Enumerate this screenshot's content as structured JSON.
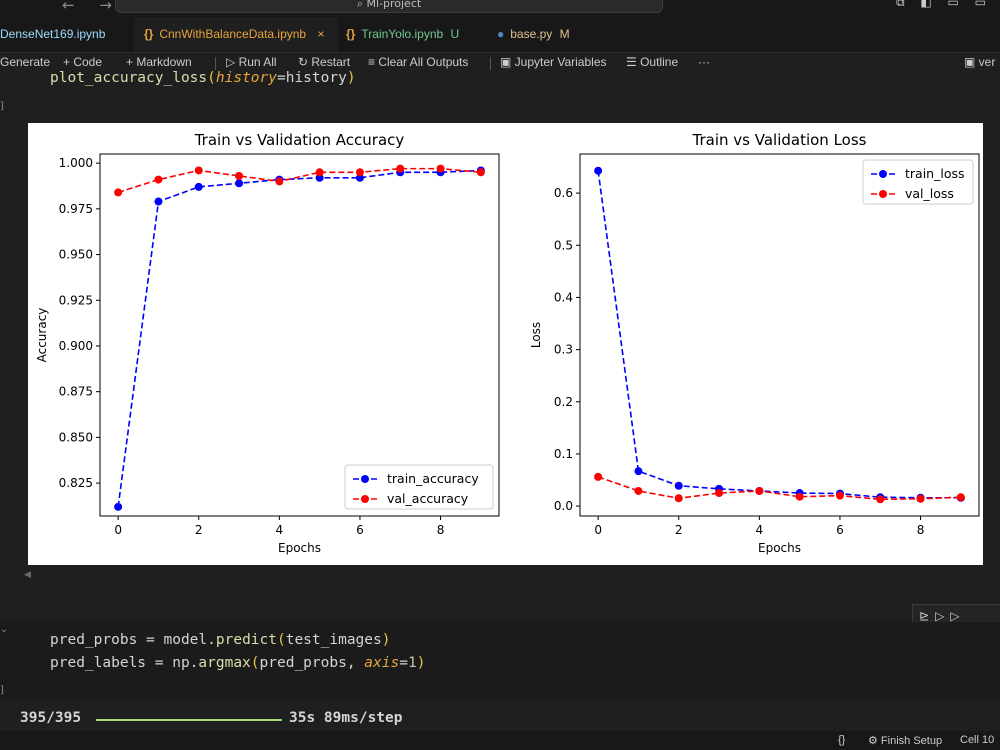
{
  "titlebar": {
    "nav": "← →",
    "search_label": "Ml-project",
    "right_icons": "⧉ ◧ ▭ ▭"
  },
  "tabs": [
    {
      "label": "DenseNet169.ipynb",
      "color": "#9cdcfe",
      "icon": "",
      "suffix": ""
    },
    {
      "label": "CnnWithBalanceData.ipynb",
      "color": "#e8a33d",
      "icon": "{}",
      "suffix": "×"
    },
    {
      "label": "TrainYolo.ipynb",
      "color": "#73c991",
      "icon": "{}",
      "suffix": "U"
    },
    {
      "label": "base.py",
      "color": "#e2c08d",
      "icon": "py",
      "suffix": "M"
    }
  ],
  "toolbar": {
    "generate": "Generate",
    "code": "+ Code",
    "markdown": "+ Markdown",
    "run_all": "▷ Run All",
    "restart": "↻ Restart",
    "clear": "≡ Clear All Outputs",
    "variables": "▣ Jupyter Variables",
    "outline": "☰ Outline",
    "more": "···",
    "kernel": "ver"
  },
  "cell1": {
    "fn": "plot_accuracy_loss",
    "param": "history",
    "arg": "history"
  },
  "cell2": {
    "line1_var": "pred_probs = model.",
    "line1_fn": "predict",
    "line1_arg": "test_images",
    "line2_var": "pred_labels = np.",
    "line2_fn": "argmax",
    "line2_arg": "pred_probs, ",
    "line2_param": "axis",
    "line2_val": "1"
  },
  "progress": {
    "count": "395/395",
    "fraction": 1.0,
    "after": "35s 89ms/step"
  },
  "statusbar": {
    "braces": "{}",
    "finish": "Finish Setup",
    "cell": "Cell 10"
  },
  "colors": {
    "train": "#0000ff",
    "val": "#ff0000",
    "active_tab": "#e8a33d"
  },
  "chart_data": [
    {
      "type": "line",
      "title": "Train vs Validation Accuracy",
      "xlabel": "Epochs",
      "ylabel": "Accuracy",
      "x": [
        0,
        1,
        2,
        3,
        4,
        5,
        6,
        7,
        8,
        9
      ],
      "xticks": [
        "0",
        "2",
        "4",
        "6",
        "8"
      ],
      "yticks": [
        "0.825",
        "0.850",
        "0.875",
        "0.900",
        "0.925",
        "0.950",
        "0.975",
        "1.000"
      ],
      "ylim": [
        0.807,
        1.005
      ],
      "xlim": [
        -0.45,
        9.45
      ],
      "legend_position": "lower right",
      "series": [
        {
          "name": "train_accuracy",
          "color": "#0000ff",
          "values": [
            0.812,
            0.979,
            0.987,
            0.989,
            0.991,
            0.992,
            0.992,
            0.995,
            0.995,
            0.996
          ]
        },
        {
          "name": "val_accuracy",
          "color": "#ff0000",
          "values": [
            0.984,
            0.991,
            0.996,
            0.993,
            0.99,
            0.995,
            0.995,
            0.997,
            0.997,
            0.995
          ]
        }
      ]
    },
    {
      "type": "line",
      "title": "Train vs Validation Loss",
      "xlabel": "Epochs",
      "ylabel": "Loss",
      "x": [
        0,
        1,
        2,
        3,
        4,
        5,
        6,
        7,
        8,
        9
      ],
      "xticks": [
        "0",
        "2",
        "4",
        "6",
        "8"
      ],
      "yticks": [
        "0.0",
        "0.1",
        "0.2",
        "0.3",
        "0.4",
        "0.5",
        "0.6"
      ],
      "ylim": [
        -0.019,
        0.675
      ],
      "xlim": [
        -0.45,
        9.45
      ],
      "legend_position": "upper right",
      "series": [
        {
          "name": "train_loss",
          "color": "#0000ff",
          "values": [
            0.643,
            0.067,
            0.039,
            0.033,
            0.029,
            0.025,
            0.024,
            0.017,
            0.016,
            0.016
          ]
        },
        {
          "name": "val_loss",
          "color": "#ff0000",
          "values": [
            0.056,
            0.029,
            0.015,
            0.025,
            0.029,
            0.018,
            0.02,
            0.013,
            0.014,
            0.017
          ]
        }
      ]
    }
  ]
}
